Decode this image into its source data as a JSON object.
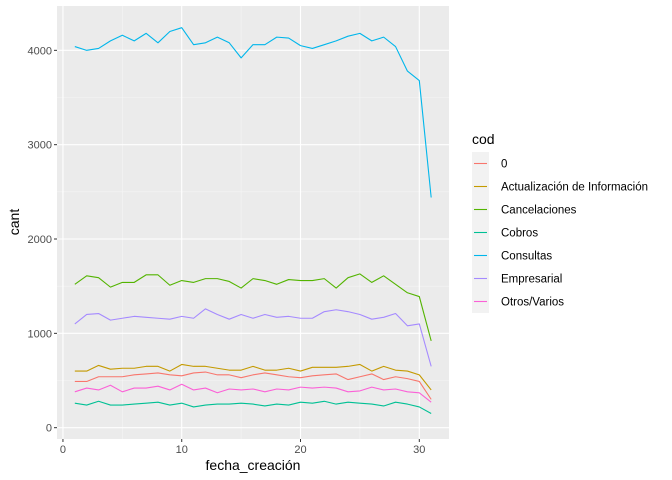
{
  "chart_data": {
    "type": "line",
    "title": "",
    "xlabel": "fecha_creación",
    "ylabel": "cant",
    "xlim": [
      -0.5,
      32.5
    ],
    "ylim": [
      -120,
      4470
    ],
    "x_ticks": [
      0,
      10,
      20,
      30
    ],
    "y_ticks": [
      0,
      1000,
      2000,
      3000,
      4000
    ],
    "grid": true,
    "legend_title": "cod",
    "legend_position": "right",
    "x": [
      1,
      2,
      3,
      4,
      5,
      6,
      7,
      8,
      9,
      10,
      11,
      12,
      13,
      14,
      15,
      16,
      17,
      18,
      19,
      20,
      21,
      22,
      23,
      24,
      25,
      26,
      27,
      28,
      29,
      30,
      31
    ],
    "series": [
      {
        "name": "0",
        "color": "#F8766D",
        "values": [
          490,
          490,
          540,
          540,
          540,
          560,
          570,
          580,
          560,
          550,
          580,
          590,
          560,
          560,
          530,
          560,
          580,
          560,
          540,
          530,
          550,
          560,
          570,
          510,
          540,
          570,
          510,
          540,
          520,
          490,
          300
        ]
      },
      {
        "name": "Actualización de Información",
        "color": "#C49A00",
        "values": [
          600,
          600,
          660,
          620,
          630,
          630,
          650,
          650,
          600,
          670,
          650,
          650,
          630,
          610,
          610,
          650,
          610,
          610,
          630,
          600,
          640,
          640,
          640,
          650,
          670,
          600,
          650,
          610,
          600,
          560,
          400
        ]
      },
      {
        "name": "Cancelaciones",
        "color": "#53B400",
        "values": [
          1520,
          1610,
          1590,
          1490,
          1540,
          1540,
          1620,
          1620,
          1510,
          1560,
          1540,
          1580,
          1580,
          1550,
          1480,
          1580,
          1560,
          1520,
          1570,
          1560,
          1560,
          1580,
          1480,
          1590,
          1630,
          1540,
          1610,
          1520,
          1430,
          1390,
          920
        ]
      },
      {
        "name": "Cobros",
        "color": "#00C094",
        "values": [
          260,
          240,
          280,
          240,
          240,
          250,
          260,
          270,
          240,
          260,
          220,
          240,
          250,
          250,
          260,
          250,
          230,
          250,
          240,
          270,
          260,
          280,
          250,
          270,
          260,
          250,
          230,
          270,
          250,
          220,
          150
        ]
      },
      {
        "name": "Consultas",
        "color": "#00B6EB",
        "values": [
          4040,
          4000,
          4020,
          4100,
          4160,
          4100,
          4180,
          4080,
          4200,
          4240,
          4060,
          4080,
          4140,
          4080,
          3920,
          4060,
          4060,
          4140,
          4130,
          4050,
          4020,
          4060,
          4100,
          4150,
          4180,
          4100,
          4140,
          4040,
          3780,
          3680,
          2440
        ]
      },
      {
        "name": "Empresarial",
        "color": "#A58AFF",
        "values": [
          1100,
          1200,
          1210,
          1140,
          1160,
          1180,
          1170,
          1160,
          1150,
          1180,
          1160,
          1260,
          1200,
          1150,
          1200,
          1160,
          1200,
          1170,
          1180,
          1160,
          1160,
          1230,
          1250,
          1230,
          1200,
          1150,
          1170,
          1210,
          1080,
          1100,
          650
        ]
      },
      {
        "name": "Otros/Varios",
        "color": "#FB61D7",
        "values": [
          380,
          420,
          400,
          450,
          380,
          420,
          420,
          440,
          400,
          460,
          400,
          420,
          370,
          410,
          400,
          410,
          380,
          410,
          400,
          430,
          420,
          430,
          420,
          380,
          390,
          430,
          400,
          410,
          380,
          370,
          270
        ]
      }
    ]
  }
}
